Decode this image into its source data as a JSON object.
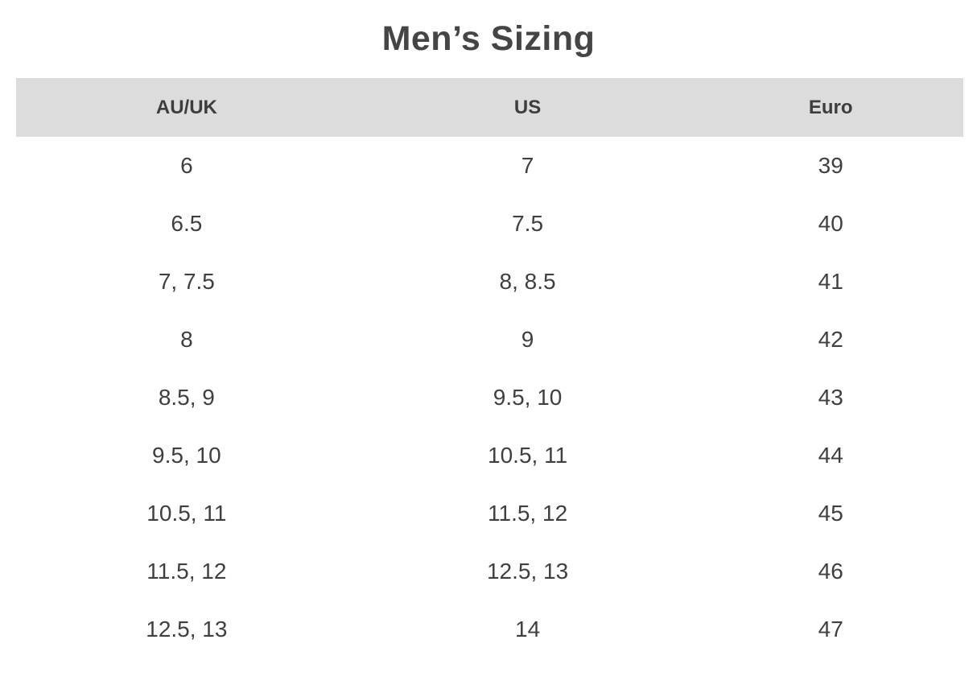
{
  "chart_data": {
    "type": "table",
    "title": "Men’s Sizing",
    "columns": [
      "AU/UK",
      "US",
      "Euro"
    ],
    "rows": [
      [
        "6",
        "7",
        "39"
      ],
      [
        "6.5",
        "7.5",
        "40"
      ],
      [
        "7, 7.5",
        "8, 8.5",
        "41"
      ],
      [
        "8",
        "9",
        "42"
      ],
      [
        "8.5, 9",
        "9.5, 10",
        "43"
      ],
      [
        "9.5, 10",
        "10.5, 11",
        "44"
      ],
      [
        "10.5, 11",
        "11.5, 12",
        "45"
      ],
      [
        "11.5, 12",
        "12.5, 13",
        "46"
      ],
      [
        "12.5, 13",
        "14",
        "47"
      ]
    ]
  },
  "colors": {
    "header_background": "#dcdcdc",
    "header_text": "#3d3d3d",
    "body_text": "#3f3f3f",
    "title_text": "#454545",
    "page_background": "#ffffff"
  }
}
